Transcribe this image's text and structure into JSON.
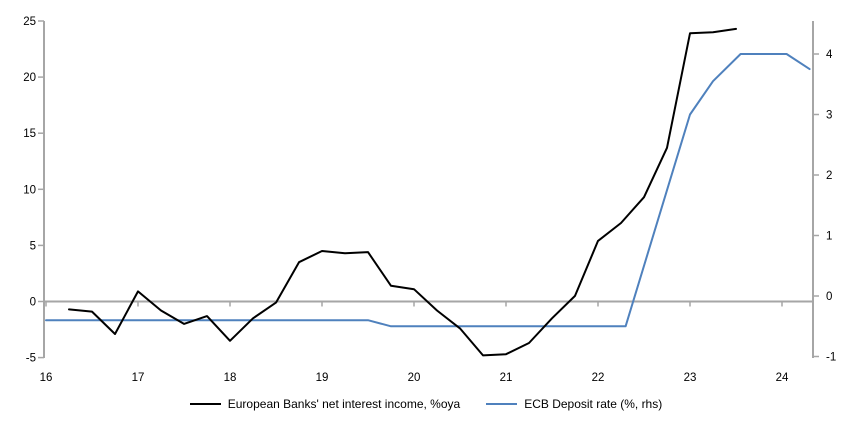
{
  "chart_data": {
    "type": "line",
    "title": "",
    "xlabel": "",
    "ylabel": "",
    "legend_position": "bottom",
    "grid": "zero-line-only",
    "axis_color": "#a6a6a6",
    "x_axis": {
      "ticks": [
        16,
        17,
        18,
        19,
        20,
        21,
        22,
        23,
        24
      ],
      "labels": [
        "16",
        "17",
        "18",
        "19",
        "20",
        "21",
        "22",
        "23",
        "24"
      ]
    },
    "left_axis": {
      "min": -5,
      "max": 25,
      "ticks": [
        25,
        20,
        15,
        10,
        5,
        0,
        -5
      ]
    },
    "right_axis": {
      "min": -1,
      "max": 4.55,
      "ticks": [
        4,
        3,
        2,
        1,
        0,
        -1
      ]
    },
    "series": [
      {
        "name": "European Banks' net interest income, %oya",
        "axis": "left",
        "color": "#000000",
        "width": 2,
        "points": [
          [
            16.25,
            -0.7
          ],
          [
            16.5,
            -0.9
          ],
          [
            16.75,
            -2.9
          ],
          [
            17.0,
            0.9
          ],
          [
            17.25,
            -0.8
          ],
          [
            17.5,
            -2.0
          ],
          [
            17.75,
            -1.3
          ],
          [
            18.0,
            -3.5
          ],
          [
            18.25,
            -1.5
          ],
          [
            18.5,
            -0.1
          ],
          [
            18.75,
            3.5
          ],
          [
            19.0,
            4.5
          ],
          [
            19.25,
            4.3
          ],
          [
            19.5,
            4.4
          ],
          [
            19.75,
            1.4
          ],
          [
            20.0,
            1.1
          ],
          [
            20.25,
            -0.8
          ],
          [
            20.5,
            -2.4
          ],
          [
            20.75,
            -4.8
          ],
          [
            21.0,
            -4.7
          ],
          [
            21.25,
            -3.7
          ],
          [
            21.5,
            -1.5
          ],
          [
            21.75,
            0.5
          ],
          [
            22.0,
            5.4
          ],
          [
            22.25,
            7.0
          ],
          [
            22.5,
            9.3
          ],
          [
            22.75,
            13.7
          ],
          [
            23.0,
            23.9
          ],
          [
            23.25,
            24.0
          ],
          [
            23.5,
            24.3
          ]
        ]
      },
      {
        "name": "ECB Deposit rate (%, rhs)",
        "axis": "right",
        "color": "#4f81bd",
        "width": 2,
        "points": [
          [
            16.0,
            -0.4
          ],
          [
            19.5,
            -0.4
          ],
          [
            19.75,
            -0.5
          ],
          [
            22.3,
            -0.5
          ],
          [
            23.0,
            3.0
          ],
          [
            23.25,
            3.55
          ],
          [
            23.55,
            4.0
          ],
          [
            24.05,
            4.0
          ],
          [
            24.3,
            3.75
          ]
        ]
      }
    ]
  }
}
